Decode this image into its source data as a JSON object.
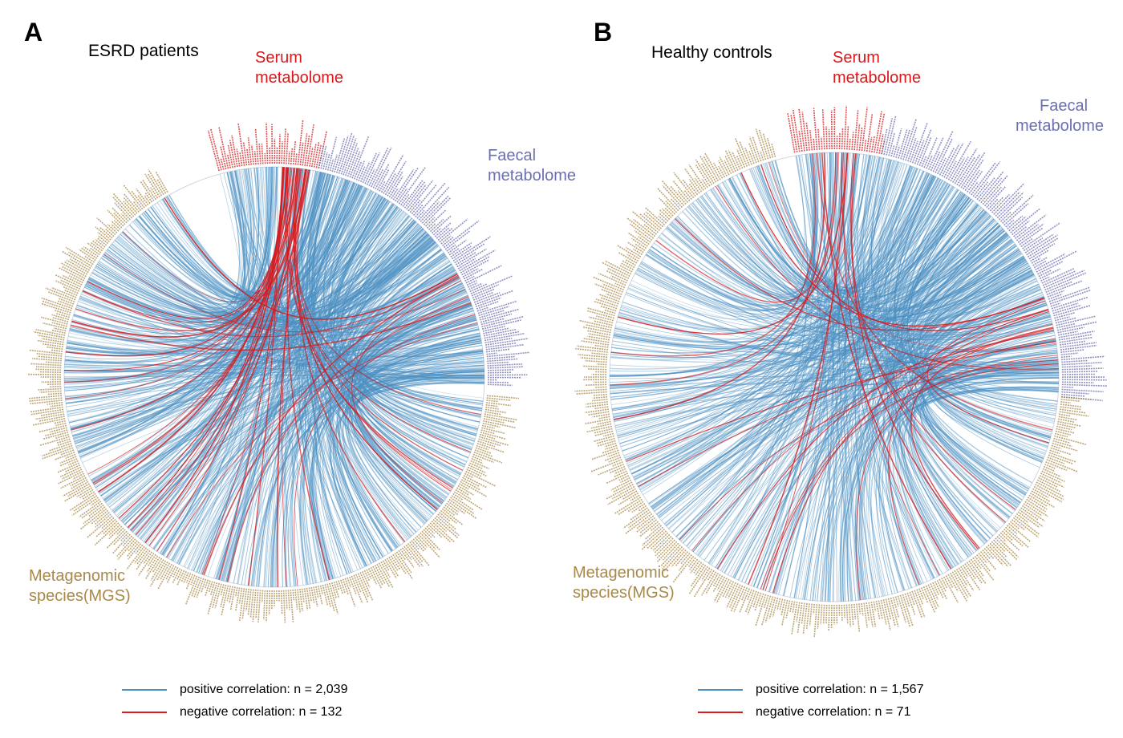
{
  "colors": {
    "mgs": "#a8894a",
    "serum": "#d7191c",
    "faecal": "#6b6fae",
    "positive": "#4a8fc2",
    "negative": "#d7191c"
  },
  "panels": [
    {
      "letter": "A",
      "group": "ESRD patients",
      "serum_label": [
        "Serum",
        "metabolome"
      ],
      "faecal_label": [
        "Faecal",
        "metabolome"
      ],
      "mgs_label": [
        "Metagenomic",
        "species(MGS)"
      ],
      "legend": [
        {
          "type": "positive",
          "text": "positive correlation: n = 2,039"
        },
        {
          "type": "negative",
          "text": "negative correlation: n = 132"
        }
      ],
      "positive_n": 2039,
      "negative_n": 132
    },
    {
      "letter": "B",
      "group": "Healthy controls",
      "serum_label": [
        "Serum",
        "metabolome"
      ],
      "faecal_label": [
        "Faecal",
        "metabolome"
      ],
      "mgs_label": [
        "Metagenomic",
        "species(MGS)"
      ],
      "legend": [
        {
          "type": "positive",
          "text": "positive correlation: n = 1,567"
        },
        {
          "type": "negative",
          "text": "negative correlation: n = 71"
        }
      ],
      "positive_n": 1567,
      "negative_n": 71
    }
  ]
}
